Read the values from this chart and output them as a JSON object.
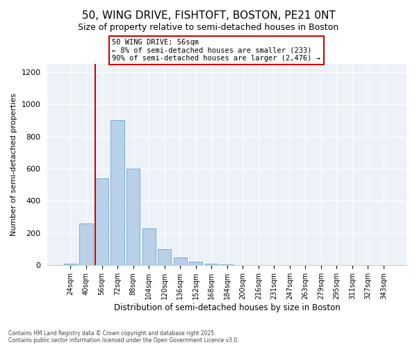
{
  "title": "50, WING DRIVE, FISHTOFT, BOSTON, PE21 0NT",
  "subtitle": "Size of property relative to semi-detached houses in Boston",
  "xlabel": "Distribution of semi-detached houses by size in Boston",
  "ylabel": "Number of semi-detached properties",
  "categories": [
    "24sqm",
    "40sqm",
    "56sqm",
    "72sqm",
    "88sqm",
    "104sqm",
    "120sqm",
    "136sqm",
    "152sqm",
    "168sqm",
    "184sqm",
    "200sqm",
    "216sqm",
    "231sqm",
    "247sqm",
    "263sqm",
    "279sqm",
    "295sqm",
    "311sqm",
    "327sqm",
    "343sqm"
  ],
  "values": [
    10,
    260,
    540,
    900,
    600,
    230,
    100,
    50,
    25,
    10,
    5,
    0,
    0,
    0,
    0,
    0,
    2,
    0,
    0,
    0,
    0
  ],
  "bar_color": "#b8d0e8",
  "bar_edge_color": "#7aafd4",
  "vline_index": 2,
  "vline_color": "#cc0000",
  "annotation_title": "50 WING DRIVE: 56sqm",
  "annotation_line1": "← 8% of semi-detached houses are smaller (233)",
  "annotation_line2": "90% of semi-detached houses are larger (2,476) →",
  "annotation_box_color": "#cc0000",
  "ylim": [
    0,
    1250
  ],
  "yticks": [
    0,
    200,
    400,
    600,
    800,
    1000,
    1200
  ],
  "footnote1": "Contains HM Land Registry data © Crown copyright and database right 2025.",
  "footnote2": "Contains public sector information licensed under the Open Government Licence v3.0.",
  "bg_color": "#edf2f9",
  "title_fontsize": 11,
  "subtitle_fontsize": 9,
  "bar_width": 0.85
}
